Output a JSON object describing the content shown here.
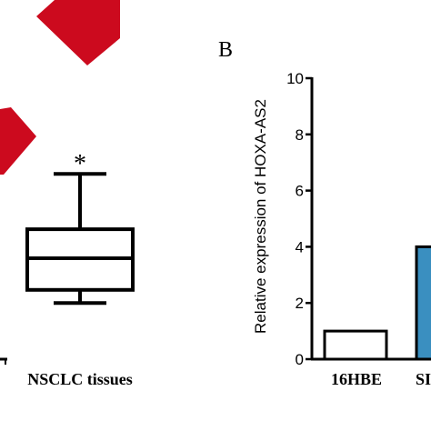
{
  "panel_b_label": "B",
  "chart_data": [
    {
      "type": "box",
      "panel": "A (partial, cropped)",
      "categories": [
        "NSCLC tissues"
      ],
      "annotation": "*",
      "box": {
        "whisker_low": -0.85,
        "q1": -0.6,
        "median": 0.0,
        "q3": 0.55,
        "whisker_high": 1.6
      },
      "box_fill": "#ffffff",
      "legend_swatch_color": "#cc0a1e"
    },
    {
      "type": "bar",
      "panel": "B",
      "categories": [
        "16HBE",
        "SK"
      ],
      "tick_labels_visible": [
        "16HBE",
        "SI"
      ],
      "values": [
        1.0,
        4.0
      ],
      "bar_colors": [
        "#ffffff",
        "#3a8fc0"
      ],
      "ylabel": "Relative expression of HOXA-AS2",
      "ylim": [
        0,
        10
      ],
      "yticks": [
        "0",
        "2",
        "4",
        "6",
        "8",
        "10"
      ],
      "grid": false
    }
  ]
}
